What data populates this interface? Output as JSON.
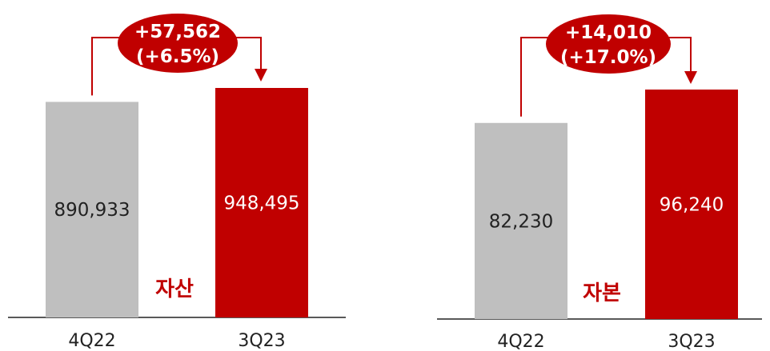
{
  "colors": {
    "prior": "#bfbfbf",
    "current": "#c00000",
    "accent": "#c00000",
    "axis": "#222222"
  },
  "chart_data": [
    {
      "type": "bar",
      "label": "자산",
      "categories": [
        "4Q22",
        "3Q23"
      ],
      "values": [
        890933,
        948495
      ],
      "value_labels": [
        "890,933",
        "948,495"
      ],
      "change": {
        "amount": "+57,562",
        "percent": "(+6.5%)"
      }
    },
    {
      "type": "bar",
      "label": "자본",
      "categories": [
        "4Q22",
        "3Q23"
      ],
      "values": [
        82230,
        96240
      ],
      "value_labels": [
        "82,230",
        "96,240"
      ],
      "change": {
        "amount": "+14,010",
        "percent": "(+17.0%)"
      }
    }
  ]
}
